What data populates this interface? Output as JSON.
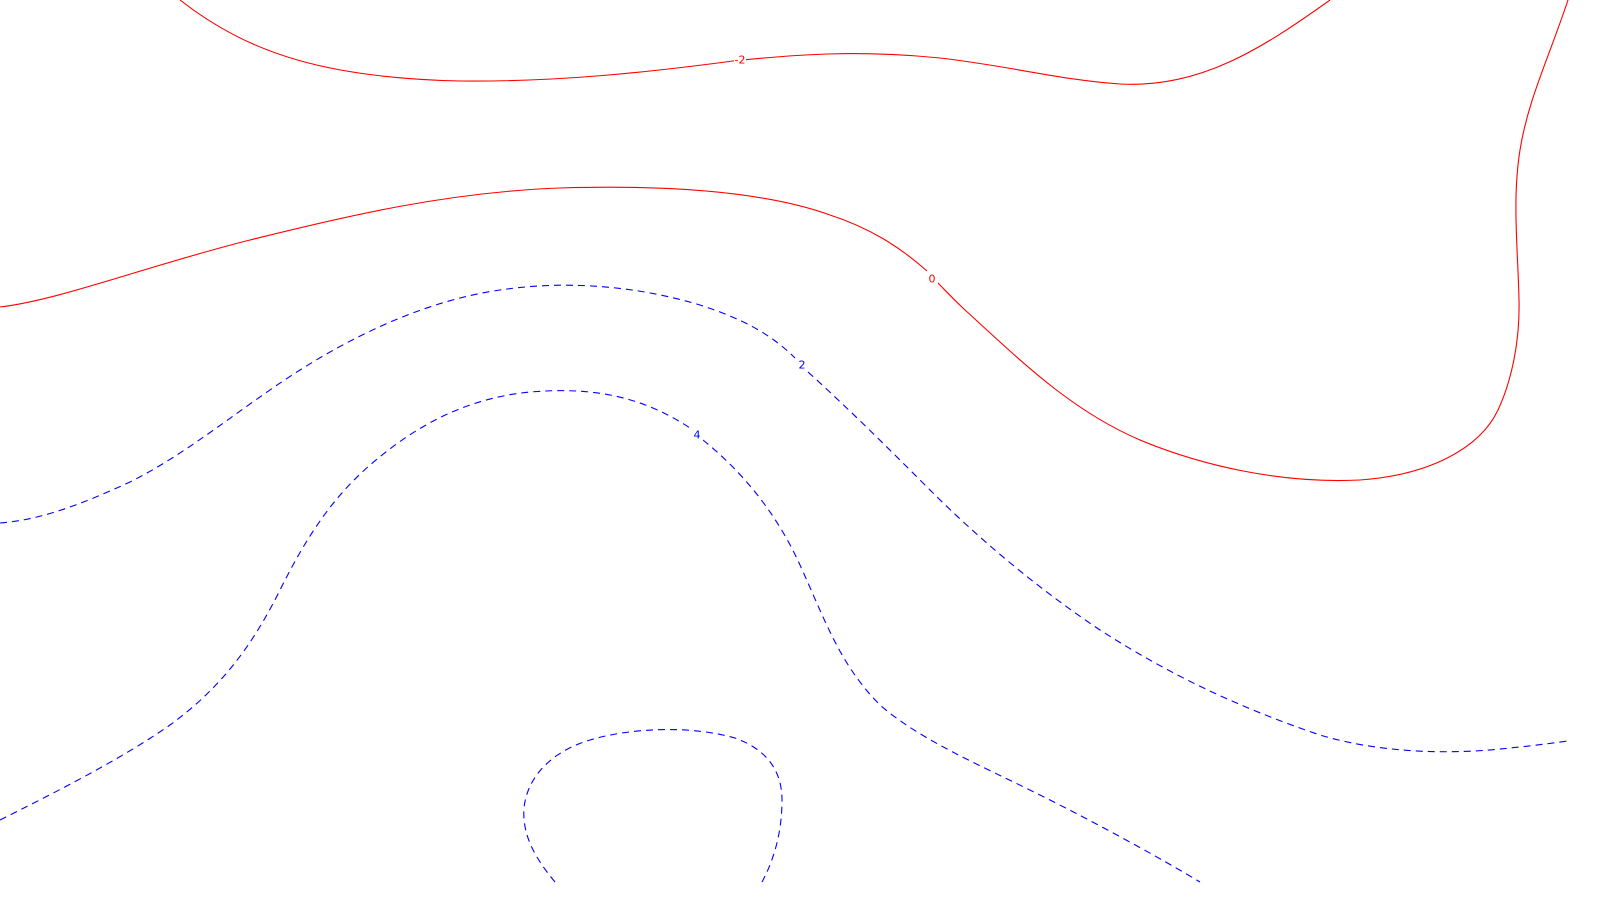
{
  "colors": {
    "background": "#ffffff",
    "negative_and_zero": "#ff0000",
    "positive": "#0000ff"
  },
  "contours": [
    {
      "level": -2,
      "label": "-2",
      "style": "solid",
      "color": "#ff0000"
    },
    {
      "level": 0,
      "label": "0",
      "style": "solid",
      "color": "#ff0000"
    },
    {
      "level": 2,
      "label": "2",
      "style": "dashed",
      "color": "#0000ff"
    },
    {
      "level": 4,
      "label": "4",
      "style": "dashed",
      "color": "#0000ff"
    },
    {
      "level": 6,
      "label": "",
      "style": "dashed",
      "color": "#0000ff"
    }
  ]
}
